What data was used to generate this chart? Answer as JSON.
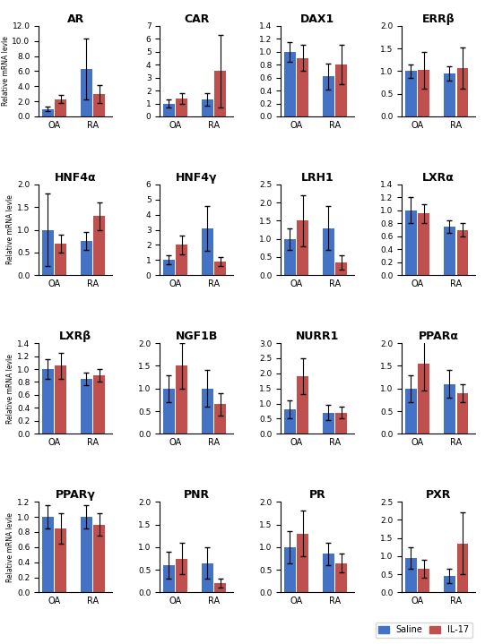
{
  "subplots": [
    {
      "title": "AR",
      "ylim": [
        0,
        12.0
      ],
      "yticks": [
        0,
        2.0,
        4.0,
        6.0,
        8.0,
        10.0,
        12.0
      ],
      "bars": {
        "OA": {
          "saline": 1.0,
          "il17": 2.3,
          "saline_err": 0.3,
          "il17_err": 0.5
        },
        "RA": {
          "saline": 6.3,
          "il17": 3.0,
          "saline_err": 4.0,
          "il17_err": 1.2
        }
      }
    },
    {
      "title": "CAR",
      "ylim": [
        0,
        7
      ],
      "yticks": [
        0,
        1,
        2,
        3,
        4,
        5,
        6,
        7
      ],
      "bars": {
        "OA": {
          "saline": 1.0,
          "il17": 1.4,
          "saline_err": 0.3,
          "il17_err": 0.4
        },
        "RA": {
          "saline": 1.3,
          "il17": 3.5,
          "saline_err": 0.5,
          "il17_err": 2.8
        }
      }
    },
    {
      "title": "DAX1",
      "ylim": [
        0,
        1.4
      ],
      "yticks": [
        0,
        0.2,
        0.4,
        0.6,
        0.8,
        1.0,
        1.2,
        1.4
      ],
      "bars": {
        "OA": {
          "saline": 1.0,
          "il17": 0.9,
          "saline_err": 0.15,
          "il17_err": 0.2
        },
        "RA": {
          "saline": 0.62,
          "il17": 0.8,
          "saline_err": 0.2,
          "il17_err": 0.3
        }
      }
    },
    {
      "title": "ERRβ",
      "ylim": [
        0,
        2.0
      ],
      "yticks": [
        0,
        0.5,
        1.0,
        1.5,
        2.0
      ],
      "bars": {
        "OA": {
          "saline": 1.0,
          "il17": 1.02,
          "saline_err": 0.15,
          "il17_err": 0.4
        },
        "RA": {
          "saline": 0.95,
          "il17": 1.07,
          "saline_err": 0.15,
          "il17_err": 0.45
        }
      }
    },
    {
      "title": "HNF4α",
      "ylim": [
        0,
        2.0
      ],
      "yticks": [
        0,
        0.5,
        1.0,
        1.5,
        2.0
      ],
      "bars": {
        "OA": {
          "saline": 1.0,
          "il17": 0.7,
          "saline_err": 0.8,
          "il17_err": 0.2
        },
        "RA": {
          "saline": 0.75,
          "il17": 1.3,
          "saline_err": 0.2,
          "il17_err": 0.3
        }
      }
    },
    {
      "title": "HNF4γ",
      "ylim": [
        0,
        6.0
      ],
      "yticks": [
        0,
        1.0,
        2.0,
        3.0,
        4.0,
        5.0,
        6.0
      ],
      "bars": {
        "OA": {
          "saline": 1.0,
          "il17": 2.0,
          "saline_err": 0.3,
          "il17_err": 0.6
        },
        "RA": {
          "saline": 3.1,
          "il17": 0.9,
          "saline_err": 1.5,
          "il17_err": 0.3
        }
      }
    },
    {
      "title": "LRH1",
      "ylim": [
        0,
        2.5
      ],
      "yticks": [
        0,
        0.5,
        1.0,
        1.5,
        2.0,
        2.5
      ],
      "bars": {
        "OA": {
          "saline": 1.0,
          "il17": 1.5,
          "saline_err": 0.3,
          "il17_err": 0.7
        },
        "RA": {
          "saline": 1.3,
          "il17": 0.35,
          "saline_err": 0.6,
          "il17_err": 0.2
        }
      }
    },
    {
      "title": "LXRα",
      "ylim": [
        0,
        1.4
      ],
      "yticks": [
        0,
        0.2,
        0.4,
        0.6,
        0.8,
        1.0,
        1.2,
        1.4
      ],
      "bars": {
        "OA": {
          "saline": 1.0,
          "il17": 0.95,
          "saline_err": 0.2,
          "il17_err": 0.15
        },
        "RA": {
          "saline": 0.75,
          "il17": 0.7,
          "saline_err": 0.1,
          "il17_err": 0.1
        }
      }
    },
    {
      "title": "LXRβ",
      "ylim": [
        0,
        1.4
      ],
      "yticks": [
        0,
        0.2,
        0.4,
        0.6,
        0.8,
        1.0,
        1.2,
        1.4
      ],
      "bars": {
        "OA": {
          "saline": 1.0,
          "il17": 1.05,
          "saline_err": 0.15,
          "il17_err": 0.2
        },
        "RA": {
          "saline": 0.85,
          "il17": 0.9,
          "saline_err": 0.1,
          "il17_err": 0.1
        }
      }
    },
    {
      "title": "NGF1B",
      "ylim": [
        0,
        2.0
      ],
      "yticks": [
        0,
        0.5,
        1.0,
        1.5,
        2.0
      ],
      "bars": {
        "OA": {
          "saline": 1.0,
          "il17": 1.5,
          "saline_err": 0.3,
          "il17_err": 0.5
        },
        "RA": {
          "saline": 1.0,
          "il17": 0.65,
          "saline_err": 0.4,
          "il17_err": 0.25
        }
      }
    },
    {
      "title": "NURR1",
      "ylim": [
        0,
        3.0
      ],
      "yticks": [
        0,
        0.5,
        1.0,
        1.5,
        2.0,
        2.5,
        3.0
      ],
      "bars": {
        "OA": {
          "saline": 0.8,
          "il17": 1.9,
          "saline_err": 0.3,
          "il17_err": 0.6
        },
        "RA": {
          "saline": 0.7,
          "il17": 0.7,
          "saline_err": 0.25,
          "il17_err": 0.2
        }
      }
    },
    {
      "title": "PPARα",
      "ylim": [
        0,
        2.0
      ],
      "yticks": [
        0,
        0.5,
        1.0,
        1.5,
        2.0
      ],
      "bars": {
        "OA": {
          "saline": 1.0,
          "il17": 1.55,
          "saline_err": 0.3,
          "il17_err": 0.6
        },
        "RA": {
          "saline": 1.1,
          "il17": 0.9,
          "saline_err": 0.3,
          "il17_err": 0.2
        }
      }
    },
    {
      "title": "PPARγ",
      "ylim": [
        0,
        1.2
      ],
      "yticks": [
        0,
        0.2,
        0.4,
        0.6,
        0.8,
        1.0,
        1.2
      ],
      "bars": {
        "OA": {
          "saline": 1.0,
          "il17": 0.85,
          "saline_err": 0.15,
          "il17_err": 0.2
        },
        "RA": {
          "saline": 1.0,
          "il17": 0.9,
          "saline_err": 0.15,
          "il17_err": 0.15
        }
      }
    },
    {
      "title": "PNR",
      "ylim": [
        0,
        2.0
      ],
      "yticks": [
        0,
        0.5,
        1.0,
        1.5,
        2.0
      ],
      "bars": {
        "OA": {
          "saline": 0.6,
          "il17": 0.75,
          "saline_err": 0.3,
          "il17_err": 0.35
        },
        "RA": {
          "saline": 0.65,
          "il17": 0.2,
          "saline_err": 0.35,
          "il17_err": 0.1
        }
      }
    },
    {
      "title": "PR",
      "ylim": [
        0,
        2.0
      ],
      "yticks": [
        0,
        0.5,
        1.0,
        1.5,
        2.0
      ],
      "bars": {
        "OA": {
          "saline": 1.0,
          "il17": 1.3,
          "saline_err": 0.35,
          "il17_err": 0.5
        },
        "RA": {
          "saline": 0.85,
          "il17": 0.65,
          "saline_err": 0.25,
          "il17_err": 0.2
        }
      }
    },
    {
      "title": "PXR",
      "ylim": [
        0,
        2.5
      ],
      "yticks": [
        0,
        0.5,
        1.0,
        1.5,
        2.0,
        2.5
      ],
      "bars": {
        "OA": {
          "saline": 0.95,
          "il17": 0.65,
          "saline_err": 0.3,
          "il17_err": 0.25
        },
        "RA": {
          "saline": 0.45,
          "il17": 1.35,
          "saline_err": 0.2,
          "il17_err": 0.85
        }
      }
    }
  ],
  "saline_color": "#4472C4",
  "il17_color": "#C0504D",
  "ylabel": "Relative mRNA levle",
  "legend_labels": [
    "Saline",
    "IL-17"
  ],
  "bar_width": 0.3,
  "group_positions": [
    0.5,
    1.5
  ]
}
